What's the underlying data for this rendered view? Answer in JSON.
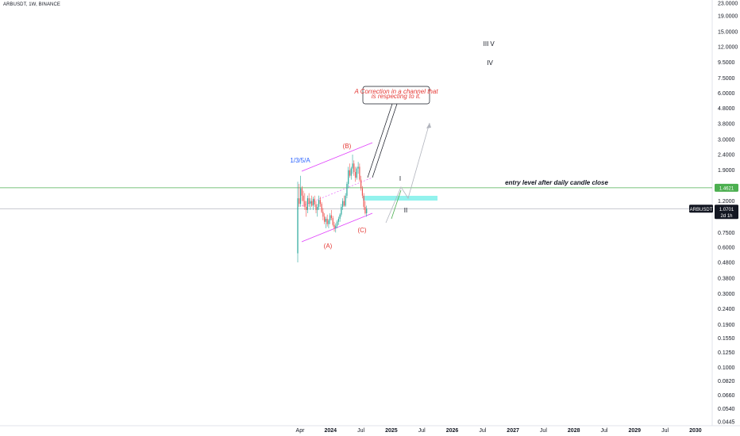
{
  "chart_data": {
    "type": "candlestick",
    "title": "ARBUSDT, 1W, BINANCE",
    "yscale": "log",
    "y_ticks": [
      "23.0000",
      "19.0000",
      "15.0000",
      "12.0000",
      "9.5000",
      "7.5000",
      "6.0000",
      "4.8000",
      "3.8000",
      "3.0000",
      "2.4000",
      "1.9000",
      "1.2000",
      "0.7500",
      "0.6000",
      "0.4800",
      "0.3800",
      "0.3000",
      "0.2400",
      "0.1900",
      "0.1550",
      "0.1250",
      "0.1000",
      "0.0820",
      "0.0660",
      "0.0540",
      "0.0445"
    ],
    "x_ticks": [
      "Apr",
      "2024",
      "Jul",
      "2025",
      "Jul",
      "2026",
      "Jul",
      "2027",
      "Jul",
      "2028",
      "Jul",
      "2029",
      "Jul",
      "2030"
    ],
    "price_badges": [
      {
        "label": "1.4621",
        "value": 1.4621,
        "color": "#4caf50"
      },
      {
        "label": "1.0701",
        "sub": "2d 1h",
        "value": 1.0701,
        "color": "#131722"
      }
    ],
    "symbol_badge": "ARBUSDT",
    "horizontal_lines": [
      {
        "value": 1.4621,
        "color": "#4caf50"
      },
      {
        "value": 1.0701,
        "color": "#b2b5be"
      }
    ],
    "annotations": {
      "entry_text": "entry level after daily candle close",
      "callout_text": [
        "A Correction in a channel that",
        "is respecting to it."
      ],
      "wave_labels": [
        {
          "text": "1/3/5/A",
          "color": "#2962ff"
        },
        {
          "text": "(B)",
          "color": "#e53935"
        },
        {
          "text": "(A)",
          "color": "#e53935"
        },
        {
          "text": "(C)",
          "color": "#e53935"
        },
        {
          "text": "I",
          "color": "#131722"
        },
        {
          "text": "II",
          "color": "#131722"
        },
        {
          "text": "III",
          "color": "#131722"
        },
        {
          "text": "V",
          "color": "#131722"
        },
        {
          "text": "IV",
          "color": "#131722"
        }
      ]
    },
    "candles": [
      {
        "o": 0.55,
        "h": 1.6,
        "l": 0.48,
        "c": 1.25
      },
      {
        "o": 1.25,
        "h": 1.55,
        "l": 1.1,
        "c": 1.15
      },
      {
        "o": 1.15,
        "h": 1.75,
        "l": 1.1,
        "c": 1.45
      },
      {
        "o": 1.45,
        "h": 1.5,
        "l": 1.2,
        "c": 1.3
      },
      {
        "o": 1.3,
        "h": 1.4,
        "l": 1.1,
        "c": 1.2
      },
      {
        "o": 1.2,
        "h": 1.35,
        "l": 1.05,
        "c": 1.1
      },
      {
        "o": 1.1,
        "h": 1.2,
        "l": 0.95,
        "c": 1.05
      },
      {
        "o": 1.05,
        "h": 1.3,
        "l": 1.0,
        "c": 1.25
      },
      {
        "o": 1.25,
        "h": 1.35,
        "l": 1.1,
        "c": 1.15
      },
      {
        "o": 1.15,
        "h": 1.25,
        "l": 1.05,
        "c": 1.2
      },
      {
        "o": 1.2,
        "h": 1.3,
        "l": 1.1,
        "c": 1.12
      },
      {
        "o": 1.12,
        "h": 1.28,
        "l": 1.05,
        "c": 1.24
      },
      {
        "o": 1.24,
        "h": 1.3,
        "l": 1.1,
        "c": 1.14
      },
      {
        "o": 1.14,
        "h": 1.2,
        "l": 1.0,
        "c": 1.05
      },
      {
        "o": 1.05,
        "h": 1.15,
        "l": 0.95,
        "c": 1.1
      },
      {
        "o": 1.1,
        "h": 1.3,
        "l": 1.05,
        "c": 1.22
      },
      {
        "o": 1.22,
        "h": 1.28,
        "l": 1.1,
        "c": 1.15
      },
      {
        "o": 1.15,
        "h": 1.18,
        "l": 1.0,
        "c": 1.02
      },
      {
        "o": 1.02,
        "h": 1.08,
        "l": 0.9,
        "c": 0.95
      },
      {
        "o": 0.95,
        "h": 1.0,
        "l": 0.85,
        "c": 0.88
      },
      {
        "o": 0.88,
        "h": 0.95,
        "l": 0.8,
        "c": 0.92
      },
      {
        "o": 0.92,
        "h": 0.98,
        "l": 0.82,
        "c": 0.85
      },
      {
        "o": 0.85,
        "h": 0.92,
        "l": 0.8,
        "c": 0.9
      },
      {
        "o": 0.9,
        "h": 1.0,
        "l": 0.85,
        "c": 0.97
      },
      {
        "o": 0.97,
        "h": 1.05,
        "l": 0.9,
        "c": 0.93
      },
      {
        "o": 0.93,
        "h": 0.96,
        "l": 0.82,
        "c": 0.84
      },
      {
        "o": 0.84,
        "h": 0.88,
        "l": 0.76,
        "c": 0.8
      },
      {
        "o": 0.8,
        "h": 0.86,
        "l": 0.75,
        "c": 0.83
      },
      {
        "o": 0.83,
        "h": 0.9,
        "l": 0.8,
        "c": 0.88
      },
      {
        "o": 0.88,
        "h": 0.95,
        "l": 0.84,
        "c": 0.92
      },
      {
        "o": 0.92,
        "h": 1.0,
        "l": 0.88,
        "c": 0.98
      },
      {
        "o": 0.98,
        "h": 1.15,
        "l": 0.95,
        "c": 1.1
      },
      {
        "o": 1.1,
        "h": 1.25,
        "l": 1.05,
        "c": 1.2
      },
      {
        "o": 1.2,
        "h": 1.3,
        "l": 1.1,
        "c": 1.12
      },
      {
        "o": 1.12,
        "h": 1.35,
        "l": 1.1,
        "c": 1.3
      },
      {
        "o": 1.3,
        "h": 1.6,
        "l": 1.25,
        "c": 1.55
      },
      {
        "o": 1.55,
        "h": 2.0,
        "l": 1.45,
        "c": 1.9
      },
      {
        "o": 1.9,
        "h": 2.1,
        "l": 1.7,
        "c": 1.75
      },
      {
        "o": 1.75,
        "h": 2.0,
        "l": 1.65,
        "c": 1.95
      },
      {
        "o": 1.95,
        "h": 2.4,
        "l": 1.8,
        "c": 2.1
      },
      {
        "o": 2.1,
        "h": 2.2,
        "l": 1.75,
        "c": 1.85
      },
      {
        "o": 1.85,
        "h": 2.0,
        "l": 1.6,
        "c": 1.7
      },
      {
        "o": 1.7,
        "h": 2.0,
        "l": 1.65,
        "c": 1.95
      },
      {
        "o": 1.95,
        "h": 2.15,
        "l": 1.8,
        "c": 2.0
      },
      {
        "o": 2.0,
        "h": 2.1,
        "l": 1.6,
        "c": 1.65
      },
      {
        "o": 1.65,
        "h": 1.75,
        "l": 1.4,
        "c": 1.45
      },
      {
        "o": 1.45,
        "h": 1.5,
        "l": 1.25,
        "c": 1.3
      },
      {
        "o": 1.3,
        "h": 1.35,
        "l": 1.05,
        "c": 1.1
      },
      {
        "o": 1.1,
        "h": 1.2,
        "l": 0.98,
        "c": 1.0
      },
      {
        "o": 1.0,
        "h": 1.12,
        "l": 0.95,
        "c": 1.07
      }
    ]
  }
}
